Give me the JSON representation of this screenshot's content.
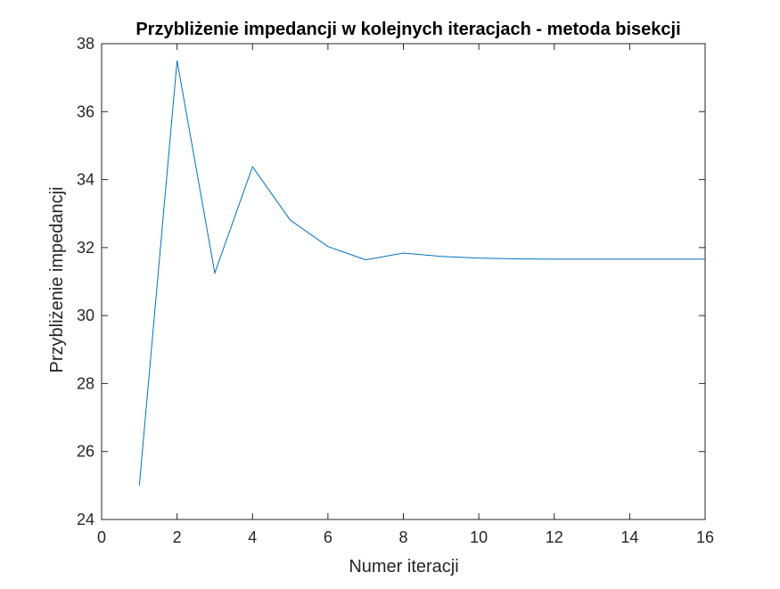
{
  "chart_data": {
    "type": "line",
    "title": "Przybliżenie impedancji w kolejnych iteracjach - metoda bisekcji",
    "xlabel": "Numer iteracji",
    "ylabel": "Przybliżenie impedancji",
    "xlim": [
      0,
      16
    ],
    "ylim": [
      24,
      38
    ],
    "xticks": [
      0,
      2,
      4,
      6,
      8,
      10,
      12,
      14,
      16
    ],
    "yticks": [
      24,
      26,
      28,
      30,
      32,
      34,
      36,
      38
    ],
    "grid": false,
    "series": [
      {
        "color": "#0072bd",
        "x": [
          1,
          2,
          3,
          4,
          5,
          6,
          7,
          8,
          9,
          10,
          11,
          12,
          13,
          14,
          15,
          16
        ],
        "y": [
          25.0,
          37.5,
          31.25,
          34.38,
          32.81,
          32.03,
          31.64,
          31.84,
          31.74,
          31.69,
          31.67,
          31.66,
          31.66,
          31.66,
          31.66,
          31.66
        ]
      }
    ]
  }
}
